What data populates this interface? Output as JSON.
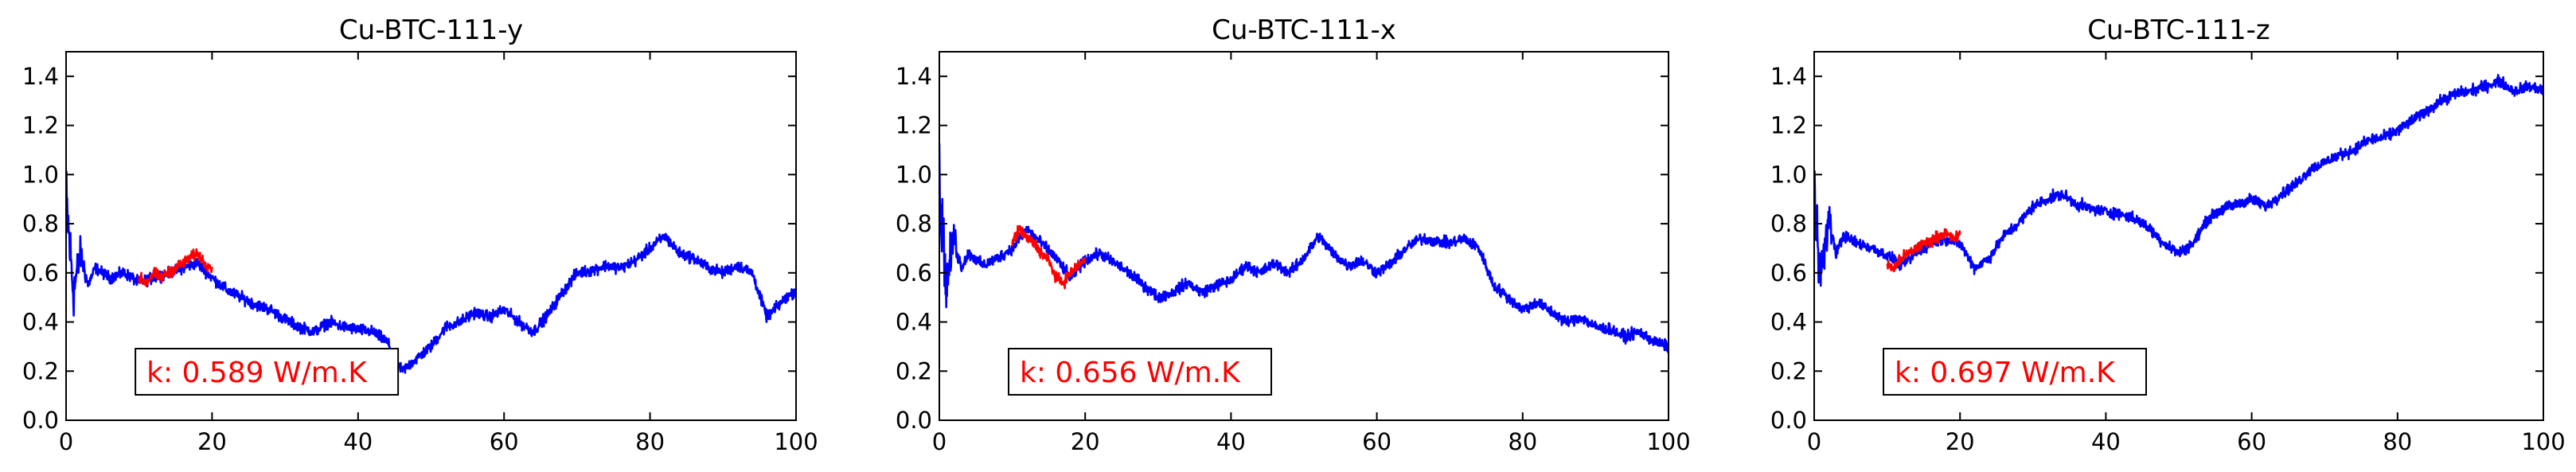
{
  "chart_data": [
    {
      "type": "line",
      "title": "Cu-BTC-111-y",
      "xlim": [
        0,
        100
      ],
      "ylim": [
        0,
        1.5
      ],
      "xticks": [
        "0",
        "20",
        "40",
        "60",
        "80",
        "100"
      ],
      "yticks": [
        "0.0",
        "0.2",
        "0.4",
        "0.6",
        "0.8",
        "1.0",
        "1.2",
        "1.4"
      ],
      "grid": false,
      "series": [
        {
          "color": "#0000ff",
          "x": [
            0,
            1,
            2,
            3,
            4,
            6,
            8,
            10,
            12,
            14,
            16,
            18,
            20,
            22,
            24,
            26,
            28,
            30,
            32,
            34,
            36,
            38,
            40,
            42,
            44,
            46,
            48,
            50,
            52,
            54,
            56,
            58,
            60,
            62,
            64,
            66,
            68,
            70,
            72,
            74,
            76,
            78,
            80,
            82,
            84,
            86,
            88,
            90,
            92,
            94,
            96,
            98,
            100
          ],
          "y": [
            0.9,
            0.52,
            0.68,
            0.55,
            0.62,
            0.58,
            0.6,
            0.56,
            0.58,
            0.6,
            0.62,
            0.64,
            0.58,
            0.53,
            0.5,
            0.47,
            0.45,
            0.41,
            0.38,
            0.36,
            0.4,
            0.38,
            0.37,
            0.36,
            0.32,
            0.2,
            0.25,
            0.3,
            0.38,
            0.4,
            0.44,
            0.42,
            0.45,
            0.4,
            0.36,
            0.43,
            0.52,
            0.6,
            0.61,
            0.63,
            0.62,
            0.65,
            0.7,
            0.75,
            0.68,
            0.66,
            0.62,
            0.6,
            0.63,
            0.6,
            0.42,
            0.48,
            0.53
          ]
        },
        {
          "color": "#ff0000",
          "x": [
            10,
            11,
            12,
            13,
            14,
            15,
            16,
            17,
            18,
            19,
            20
          ],
          "y": [
            0.58,
            0.56,
            0.6,
            0.58,
            0.6,
            0.62,
            0.64,
            0.66,
            0.68,
            0.64,
            0.62
          ]
        }
      ],
      "annotation": "k: 0.589 W/m.K"
    },
    {
      "type": "line",
      "title": "Cu-BTC-111-x",
      "xlim": [
        0,
        100
      ],
      "ylim": [
        0,
        1.5
      ],
      "xticks": [
        "0",
        "20",
        "40",
        "60",
        "80",
        "100"
      ],
      "yticks": [
        "0.0",
        "0.2",
        "0.4",
        "0.6",
        "0.8",
        "1.0",
        "1.2",
        "1.4"
      ],
      "grid": false,
      "series": [
        {
          "color": "#0000ff",
          "x": [
            0,
            1,
            2,
            3,
            4,
            6,
            8,
            10,
            12,
            14,
            16,
            18,
            20,
            22,
            24,
            26,
            28,
            30,
            32,
            34,
            36,
            38,
            40,
            42,
            44,
            46,
            48,
            50,
            52,
            54,
            56,
            58,
            60,
            62,
            64,
            66,
            68,
            70,
            72,
            74,
            76,
            78,
            80,
            82,
            84,
            86,
            88,
            90,
            92,
            94,
            96,
            98,
            100
          ],
          "y": [
            0.95,
            0.55,
            0.75,
            0.62,
            0.68,
            0.63,
            0.66,
            0.7,
            0.78,
            0.72,
            0.66,
            0.58,
            0.65,
            0.68,
            0.64,
            0.6,
            0.55,
            0.5,
            0.52,
            0.56,
            0.52,
            0.55,
            0.57,
            0.63,
            0.6,
            0.64,
            0.6,
            0.66,
            0.75,
            0.68,
            0.63,
            0.65,
            0.6,
            0.64,
            0.7,
            0.74,
            0.73,
            0.72,
            0.74,
            0.7,
            0.55,
            0.5,
            0.45,
            0.48,
            0.44,
            0.4,
            0.42,
            0.38,
            0.37,
            0.34,
            0.36,
            0.32,
            0.3
          ]
        },
        {
          "color": "#ff0000",
          "x": [
            10,
            11,
            12,
            13,
            14,
            15,
            16,
            17,
            18,
            19,
            20
          ],
          "y": [
            0.72,
            0.78,
            0.74,
            0.72,
            0.68,
            0.65,
            0.58,
            0.56,
            0.6,
            0.63,
            0.65
          ]
        }
      ],
      "annotation": "k: 0.656 W/m.K"
    },
    {
      "type": "line",
      "title": "Cu-BTC-111-z",
      "xlim": [
        0,
        100
      ],
      "ylim": [
        0,
        1.5
      ],
      "xticks": [
        "0",
        "20",
        "40",
        "60",
        "80",
        "100"
      ],
      "yticks": [
        "0.0",
        "0.2",
        "0.4",
        "0.6",
        "0.8",
        "1.0",
        "1.2",
        "1.4"
      ],
      "grid": false,
      "series": [
        {
          "color": "#0000ff",
          "x": [
            0,
            1,
            2,
            3,
            4,
            6,
            8,
            10,
            12,
            14,
            16,
            18,
            20,
            22,
            24,
            26,
            28,
            30,
            32,
            34,
            36,
            38,
            40,
            42,
            44,
            46,
            48,
            50,
            52,
            54,
            56,
            58,
            60,
            62,
            64,
            66,
            68,
            70,
            72,
            74,
            76,
            78,
            80,
            82,
            84,
            86,
            88,
            90,
            92,
            94,
            96,
            98,
            100
          ],
          "y": [
            0.9,
            0.6,
            0.82,
            0.68,
            0.75,
            0.72,
            0.7,
            0.67,
            0.63,
            0.68,
            0.72,
            0.74,
            0.72,
            0.62,
            0.66,
            0.75,
            0.8,
            0.87,
            0.9,
            0.92,
            0.88,
            0.86,
            0.85,
            0.84,
            0.82,
            0.78,
            0.72,
            0.68,
            0.72,
            0.82,
            0.86,
            0.88,
            0.9,
            0.87,
            0.92,
            0.96,
            1.02,
            1.05,
            1.08,
            1.1,
            1.14,
            1.15,
            1.18,
            1.22,
            1.26,
            1.3,
            1.33,
            1.34,
            1.36,
            1.38,
            1.34,
            1.36,
            1.34
          ]
        },
        {
          "color": "#ff0000",
          "x": [
            10,
            11,
            12,
            13,
            14,
            15,
            16,
            17,
            18,
            19,
            20
          ],
          "y": [
            0.63,
            0.62,
            0.66,
            0.68,
            0.7,
            0.72,
            0.73,
            0.75,
            0.76,
            0.74,
            0.75
          ]
        }
      ],
      "annotation": "k: 0.697 W/m.K"
    }
  ]
}
